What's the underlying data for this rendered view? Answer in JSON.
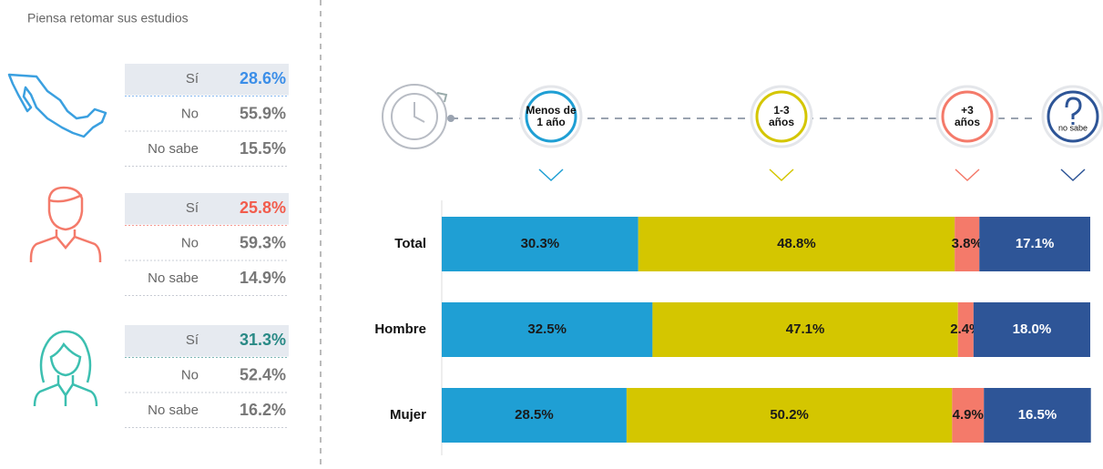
{
  "left_panel": {
    "title": "Piensa retomar sus estudios",
    "groups": [
      {
        "color": "#3b8ee8",
        "rows": [
          {
            "label": "Sí",
            "value": "28.6%"
          },
          {
            "label": "No",
            "value": "55.9%"
          },
          {
            "label": "No sabe",
            "value": "15.5%"
          }
        ]
      },
      {
        "color": "#f25c4c",
        "rows": [
          {
            "label": "Sí",
            "value": "25.8%"
          },
          {
            "label": "No",
            "value": "59.3%"
          },
          {
            "label": "No sabe",
            "value": "14.9%"
          }
        ]
      },
      {
        "color": "#2a8a86",
        "rows": [
          {
            "label": "Sí",
            "value": "31.3%"
          },
          {
            "label": "No",
            "value": "52.4%"
          },
          {
            "label": "No sabe",
            "value": "16.2%"
          }
        ]
      }
    ]
  },
  "chart_data": {
    "type": "stacked_barh",
    "categories": [
      "Total",
      "Hombre",
      "Mujer"
    ],
    "xlim": [
      0,
      100
    ],
    "series": [
      {
        "name": "Menos de\n1 año",
        "color": "#1f9fd4",
        "label_color": "#1a1a1a",
        "values": [
          30.3,
          32.5,
          28.5
        ],
        "value_labels": [
          "30.3%",
          "32.5%",
          "28.5%"
        ]
      },
      {
        "name": "1-3\naños",
        "color": "#d4c600",
        "label_color": "#1a1a1a",
        "values": [
          48.8,
          47.1,
          50.2
        ],
        "value_labels": [
          "48.8%",
          "47.1%",
          "50.2%"
        ]
      },
      {
        "name": "+3\naños",
        "color": "#f47a6a",
        "label_color": "#1a1a1a",
        "values": [
          3.8,
          2.4,
          4.9
        ],
        "value_labels": [
          "3.8%",
          "2.4%",
          "4.9%"
        ]
      },
      {
        "name": "no sabe",
        "color": "#2e5597",
        "label_color": "#ffffff",
        "values": [
          17.1,
          18.0,
          16.5
        ],
        "value_labels": [
          "17.1%",
          "18.0%",
          "16.5%"
        ]
      }
    ]
  }
}
